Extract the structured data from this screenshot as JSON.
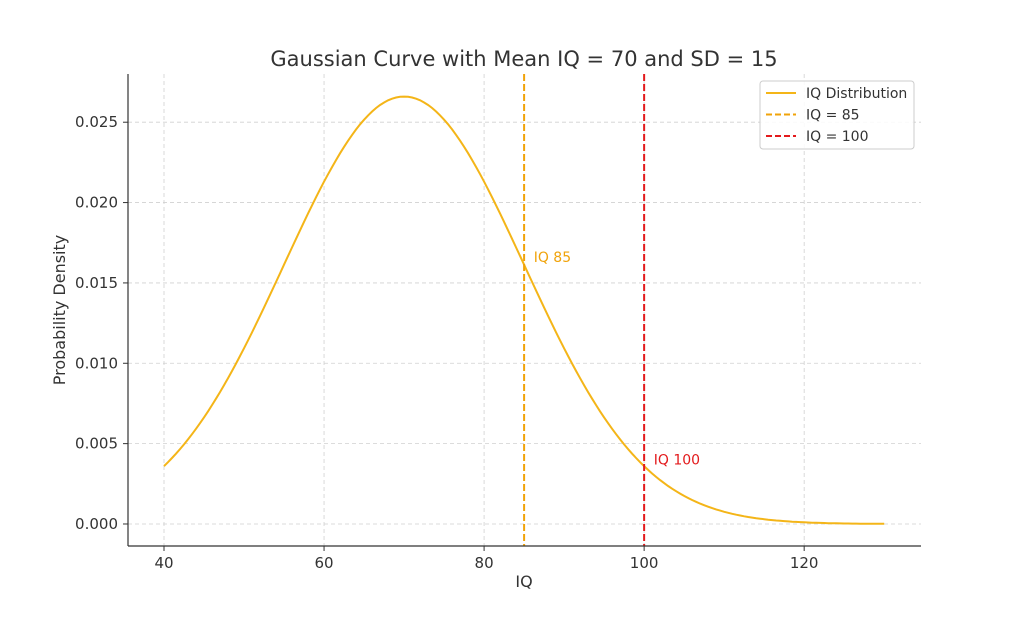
{
  "chart_data": {
    "type": "line",
    "title": "Gaussian Curve with Mean IQ = 70 and SD = 15",
    "xlabel": "IQ",
    "ylabel": "Probability Density",
    "xlim": [
      35.5,
      134.6
    ],
    "ylim": [
      -0.00137,
      0.028
    ],
    "grid": true,
    "legend_position": "top-right",
    "xticks": [
      40,
      60,
      80,
      100,
      120
    ],
    "xtick_labels": [
      "40",
      "60",
      "80",
      "100",
      "120"
    ],
    "yticks": [
      0,
      0.005,
      0.01,
      0.015,
      0.02,
      0.025
    ],
    "ytick_labels": [
      "0.000",
      "0.005",
      "0.010",
      "0.015",
      "0.020",
      "0.025"
    ],
    "series": [
      {
        "name": "IQ Distribution",
        "kind": "normal_pdf",
        "mean": 70,
        "sd": 15,
        "x_range": [
          40,
          130
        ],
        "color": "#f4b518",
        "style": "solid"
      }
    ],
    "vlines": [
      {
        "name": "IQ = 85",
        "x": 85,
        "color": "#f0a30a",
        "style": "dashed"
      },
      {
        "name": "IQ = 100",
        "x": 100,
        "color": "#e31a1c",
        "style": "dashed"
      }
    ],
    "legend": [
      "IQ Distribution",
      "IQ = 85",
      "IQ = 100"
    ],
    "annotations": [
      {
        "text": "IQ 85",
        "x": 86.2,
        "y": 0.0166,
        "color": "#f0a30a"
      },
      {
        "text": "IQ 100",
        "x": 101.2,
        "y": 0.004,
        "color": "#e31a1c"
      }
    ]
  }
}
